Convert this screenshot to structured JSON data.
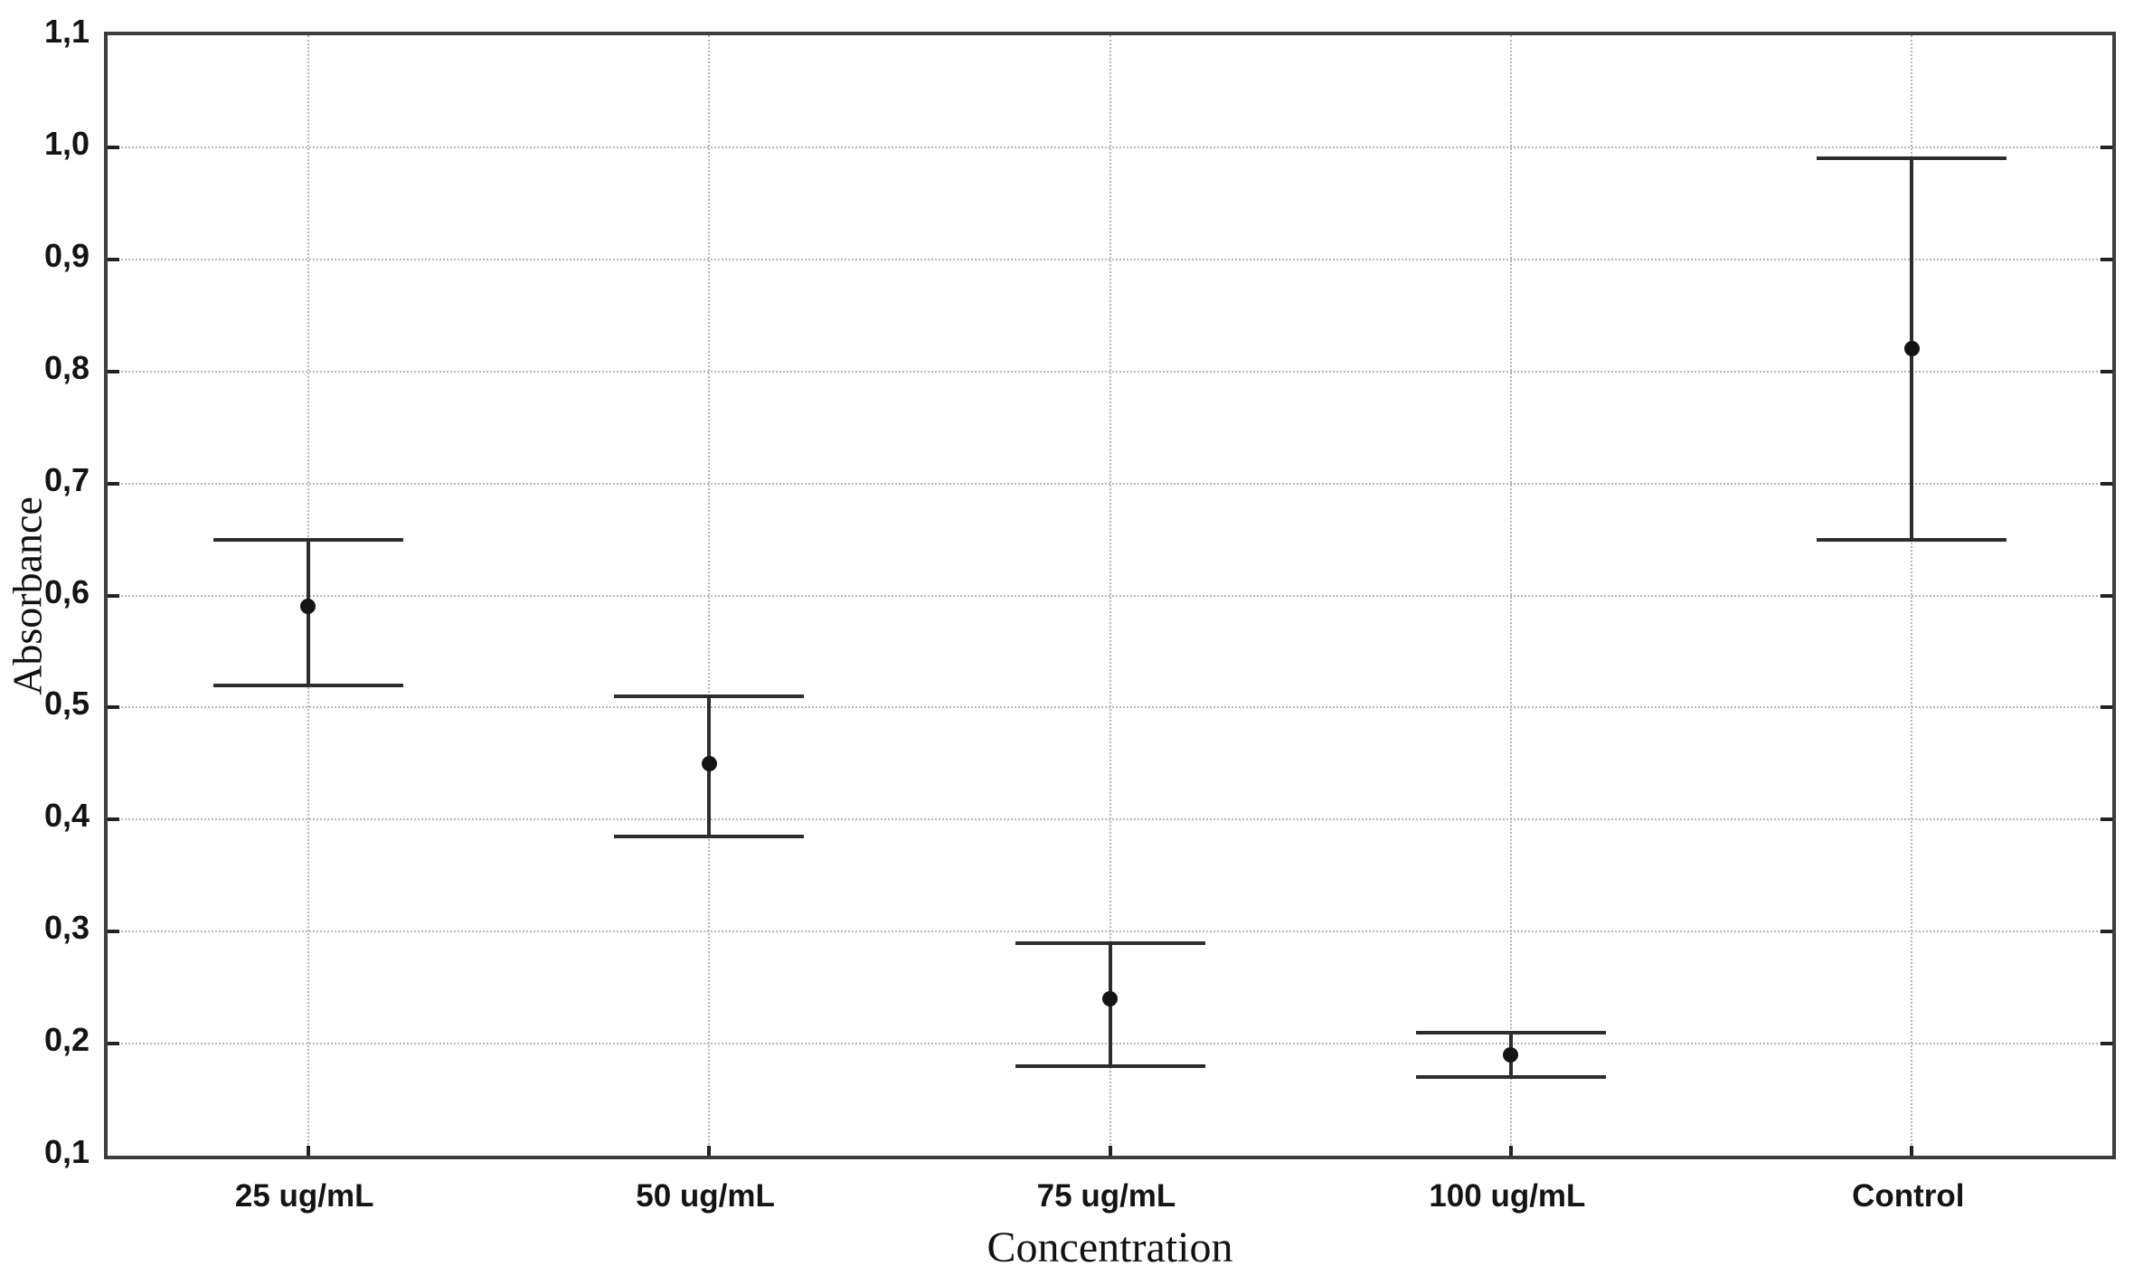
{
  "chart_data": {
    "type": "scatter",
    "subtype": "mean-with-error-bars",
    "title": "",
    "xlabel": "Concentration",
    "ylabel": "Absorbance",
    "categories": [
      "25 ug/mL",
      "50 ug/mL",
      "75 ug/mL",
      "100 ug/mL",
      "Control"
    ],
    "series": [
      {
        "name": "Mean",
        "values": [
          0.59,
          0.45,
          0.24,
          0.19,
          0.82
        ]
      },
      {
        "name": "Upper error limit",
        "values": [
          0.65,
          0.51,
          0.29,
          0.21,
          0.99
        ]
      },
      {
        "name": "Lower error limit",
        "values": [
          0.52,
          0.385,
          0.18,
          0.17,
          0.65
        ]
      }
    ],
    "ylim": [
      0.1,
      1.1
    ],
    "ytick_step": 0.1,
    "ytick_labels_top_to_bottom": [
      "1,1",
      "1,0",
      "0,9",
      "0,8",
      "0,7",
      "0,6",
      "0,5",
      "0,4",
      "0,3",
      "0,2",
      "0,1"
    ],
    "decimal_separator": ",",
    "grid": {
      "horizontal": true,
      "vertical": true,
      "style": "dotted"
    },
    "legend_position": "none",
    "marker": "filled-circle",
    "colors": {
      "background": "#ffffff",
      "marker": "#141414",
      "error_bar": "#2d2d2d",
      "grid_line": "#b5b5b5",
      "axis_border": "#3d3d3d",
      "tick_mark": "#222222",
      "tick_label": "#141414",
      "axis_title": "#111111"
    }
  }
}
